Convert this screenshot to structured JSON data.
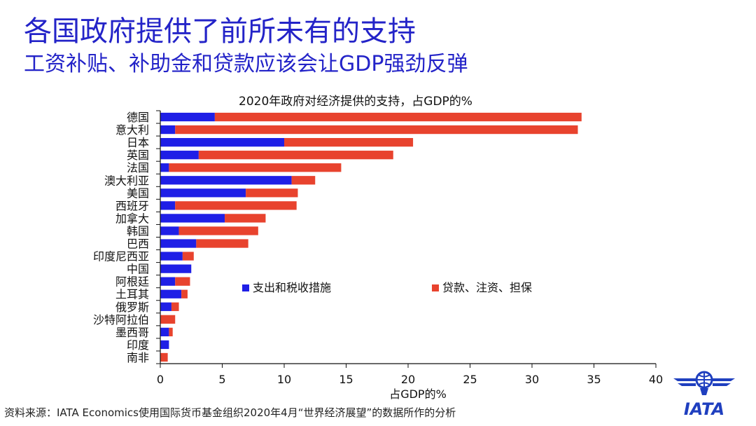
{
  "slide": {
    "title": "各国政府提供了前所未有的支持",
    "subtitle": "工资补贴、补助金和贷款应该会让GDP强劲反弹"
  },
  "source": "资料来源：IATA Economics使用国际货币基金组织2020年4月“世界经济展望”的数据所作的分析",
  "logo": {
    "text": "IATA",
    "color": "#1f3fbf",
    "icon": "iata-globe-wings-logo"
  },
  "chart_data": {
    "type": "bar",
    "orientation": "horizontal",
    "stacked": true,
    "title": "2020年政府对经济提供的支持，占GDP的%",
    "xlabel": "占GDP的%",
    "ylabel": "",
    "xlim": [
      0,
      40
    ],
    "xticks": [
      0,
      5,
      10,
      15,
      20,
      25,
      30,
      35,
      40
    ],
    "grid": false,
    "legend_position": "center-inside",
    "categories": [
      "德国",
      "意大利",
      "日本",
      "英国",
      "法国",
      "澳大利亚",
      "美国",
      "西班牙",
      "加拿大",
      "韩国",
      "巴西",
      "印度尼西亚",
      "中国",
      "阿根廷",
      "土耳其",
      "俄罗斯",
      "沙特阿拉伯",
      "墨西哥",
      "印度",
      "南非"
    ],
    "series": [
      {
        "name": "支出和税收措施",
        "color": "#1f1fe6",
        "values": [
          4.4,
          1.2,
          10.0,
          3.1,
          0.7,
          10.6,
          6.9,
          1.2,
          5.2,
          1.5,
          2.9,
          1.8,
          2.5,
          1.2,
          1.7,
          0.9,
          0.0,
          0.7,
          0.7,
          0.0
        ]
      },
      {
        "name": "贷款、注资、担保",
        "color": "#e8432e",
        "values": [
          29.6,
          32.5,
          10.4,
          15.7,
          13.9,
          1.9,
          4.2,
          9.8,
          3.3,
          6.4,
          4.2,
          0.9,
          0.0,
          1.2,
          0.5,
          0.6,
          1.2,
          0.3,
          0.0,
          0.6
        ]
      }
    ]
  }
}
